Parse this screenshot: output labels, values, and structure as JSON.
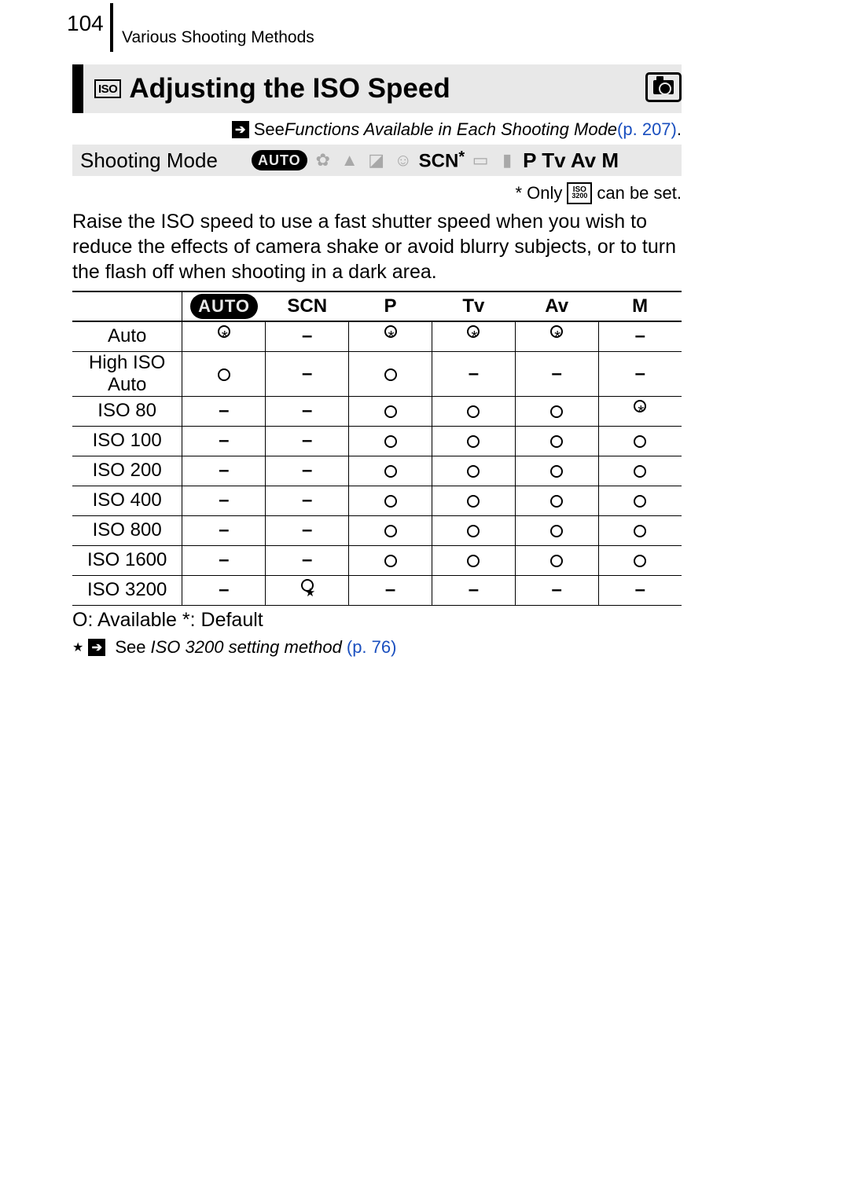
{
  "page": {
    "number": "104",
    "section": "Various Shooting Methods"
  },
  "title": {
    "iso_badge": "ISO",
    "text": "Adjusting the ISO Speed"
  },
  "see_ref": {
    "prefix": "See ",
    "italic": "Functions Available in Each Shooting Mode",
    "page": " (p. 207)",
    "dot": "."
  },
  "mode_row": {
    "label": "Shooting Mode",
    "auto": "AUTO",
    "scn": "SCN",
    "modes_tail": "P Tv Av M"
  },
  "only_note": {
    "prefix": "* Only ",
    "badge_top": "ISO",
    "badge_bot": "3200",
    "suffix": " can be set."
  },
  "intro": "Raise the ISO speed to use a fast shutter speed when you wish to reduce the effects of camera shake or avoid blurry subjects, or to turn the flash off when shooting in a dark area.",
  "table": {
    "columns": [
      "AUTO",
      "SCN",
      "P",
      "Tv",
      "Av",
      "M"
    ],
    "rows": [
      {
        "label": "Auto",
        "cells": [
          "O*",
          "–",
          "O*",
          "O*",
          "O*",
          "–"
        ]
      },
      {
        "label": "High ISO Auto",
        "cells": [
          "O",
          "–",
          "O",
          "–",
          "–",
          "–"
        ],
        "tall": true
      },
      {
        "label": "ISO 80",
        "cells": [
          "–",
          "–",
          "O",
          "O",
          "O",
          "O*"
        ]
      },
      {
        "label": "ISO 100",
        "cells": [
          "–",
          "–",
          "O",
          "O",
          "O",
          "O"
        ]
      },
      {
        "label": "ISO 200",
        "cells": [
          "–",
          "–",
          "O",
          "O",
          "O",
          "O"
        ]
      },
      {
        "label": "ISO 400",
        "cells": [
          "–",
          "–",
          "O",
          "O",
          "O",
          "O"
        ]
      },
      {
        "label": "ISO 800",
        "cells": [
          "–",
          "–",
          "O",
          "O",
          "O",
          "O"
        ]
      },
      {
        "label": "ISO 1600",
        "cells": [
          "–",
          "–",
          "O",
          "O",
          "O",
          "O"
        ]
      },
      {
        "label": "ISO 3200",
        "cells": [
          "–",
          "O★",
          "–",
          "–",
          "–",
          "–"
        ]
      }
    ]
  },
  "legend1": "O: Available     *: Default",
  "legend2": {
    "prefix": "See ",
    "italic": "ISO 3200 setting method",
    "page": " (p. 76)"
  },
  "colors": {
    "bar_bg": "#e8e8e8",
    "link": "#1a4fbf",
    "faded_icon": "#a8a8a8"
  }
}
